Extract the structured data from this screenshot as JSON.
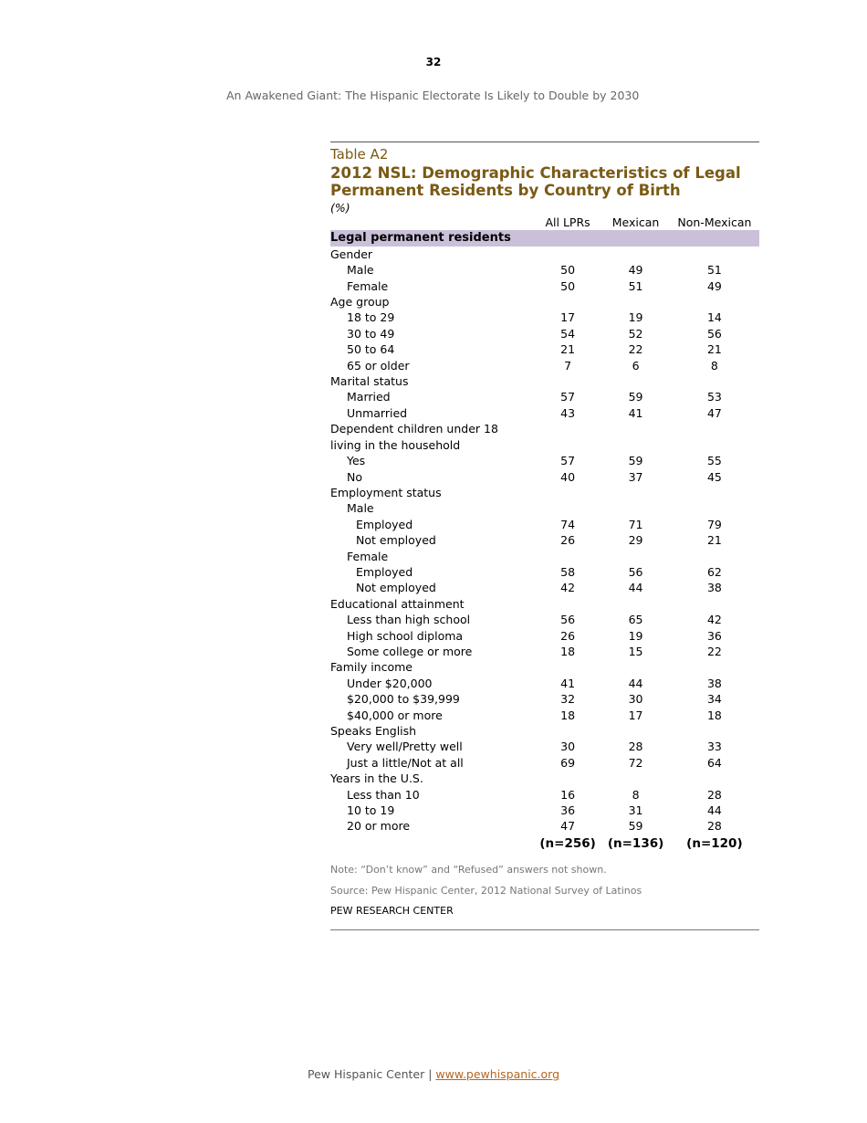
{
  "page_number": "32",
  "running_header": "An Awakened Giant: The Hispanic Electorate Is Likely to Double by 2030",
  "table": {
    "label": "Table A2",
    "title": "2012 NSL: Demographic Characteristics of Legal Permanent Residents by Country of Birth",
    "unit": "(%)",
    "columns": [
      "All LPRs",
      "Mexican",
      "Non-Mexican"
    ],
    "section": "Legal permanent residents",
    "rows": [
      {
        "label": "Gender",
        "level": 1,
        "values": [
          "",
          "",
          ""
        ]
      },
      {
        "label": "Male",
        "level": 2,
        "values": [
          "50",
          "49",
          "51"
        ]
      },
      {
        "label": "Female",
        "level": 2,
        "values": [
          "50",
          "51",
          "49"
        ]
      },
      {
        "label": "Age group",
        "level": 1,
        "values": [
          "",
          "",
          ""
        ]
      },
      {
        "label": "18 to 29",
        "level": 2,
        "values": [
          "17",
          "19",
          "14"
        ]
      },
      {
        "label": "30 to 49",
        "level": 2,
        "values": [
          "54",
          "52",
          "56"
        ]
      },
      {
        "label": "50 to 64",
        "level": 2,
        "values": [
          "21",
          "22",
          "21"
        ]
      },
      {
        "label": "65 or older",
        "level": 2,
        "values": [
          "7",
          "6",
          "8"
        ]
      },
      {
        "label": "Marital status",
        "level": 1,
        "values": [
          "",
          "",
          ""
        ]
      },
      {
        "label": "Married",
        "level": 2,
        "values": [
          "57",
          "59",
          "53"
        ]
      },
      {
        "label": "Unmarried",
        "level": 2,
        "values": [
          "43",
          "41",
          "47"
        ]
      },
      {
        "label": "Dependent children under 18",
        "level": 1,
        "values": [
          "",
          "",
          ""
        ]
      },
      {
        "label": "living in the household",
        "level": 1,
        "values": [
          "",
          "",
          ""
        ]
      },
      {
        "label": "Yes",
        "level": 2,
        "values": [
          "57",
          "59",
          "55"
        ]
      },
      {
        "label": "No",
        "level": 2,
        "values": [
          "40",
          "37",
          "45"
        ]
      },
      {
        "label": "Employment status",
        "level": 1,
        "values": [
          "",
          "",
          ""
        ]
      },
      {
        "label": "Male",
        "level": 2,
        "values": [
          "",
          "",
          ""
        ]
      },
      {
        "label": "Employed",
        "level": 3,
        "values": [
          "74",
          "71",
          "79"
        ]
      },
      {
        "label": "Not employed",
        "level": 3,
        "values": [
          "26",
          "29",
          "21"
        ]
      },
      {
        "label": "Female",
        "level": 2,
        "values": [
          "",
          "",
          ""
        ]
      },
      {
        "label": "Employed",
        "level": 3,
        "values": [
          "58",
          "56",
          "62"
        ]
      },
      {
        "label": "Not employed",
        "level": 3,
        "values": [
          "42",
          "44",
          "38"
        ]
      },
      {
        "label": "Educational attainment",
        "level": 1,
        "values": [
          "",
          "",
          ""
        ]
      },
      {
        "label": "Less than high school",
        "level": 2,
        "values": [
          "56",
          "65",
          "42"
        ]
      },
      {
        "label": "High school diploma",
        "level": 2,
        "values": [
          "26",
          "19",
          "36"
        ]
      },
      {
        "label": "Some college or more",
        "level": 2,
        "values": [
          "18",
          "15",
          "22"
        ]
      },
      {
        "label": "Family income",
        "level": 1,
        "values": [
          "",
          "",
          ""
        ]
      },
      {
        "label": "Under $20,000",
        "level": 2,
        "values": [
          "41",
          "44",
          "38"
        ]
      },
      {
        "label": "$20,000 to $39,999",
        "level": 2,
        "values": [
          "32",
          "30",
          "34"
        ]
      },
      {
        "label": "$40,000 or more",
        "level": 2,
        "values": [
          "18",
          "17",
          "18"
        ]
      },
      {
        "label": "Speaks English",
        "level": 1,
        "values": [
          "",
          "",
          ""
        ]
      },
      {
        "label": "Very well/Pretty well",
        "level": 2,
        "values": [
          "30",
          "28",
          "33"
        ]
      },
      {
        "label": "Just a little/Not at all",
        "level": 2,
        "values": [
          "69",
          "72",
          "64"
        ]
      },
      {
        "label": "Years in the U.S.",
        "level": 1,
        "values": [
          "",
          "",
          ""
        ]
      },
      {
        "label": "Less than 10",
        "level": 2,
        "values": [
          "16",
          "8",
          "28"
        ]
      },
      {
        "label": "10 to 19",
        "level": 2,
        "values": [
          "36",
          "31",
          "44"
        ]
      },
      {
        "label": "20 or more",
        "level": 2,
        "values": [
          "47",
          "59",
          "28"
        ]
      }
    ],
    "n": [
      "(n=256)",
      "(n=136)",
      "(n=120)"
    ],
    "note": "Note: “Don’t know” and “Refused” answers not shown.",
    "source": "Source: Pew Hispanic Center, 2012 National Survey of Latinos",
    "org": "PEW RESEARCH CENTER"
  },
  "footer": {
    "text": "Pew Hispanic Center | ",
    "link": "www.pewhispanic.org"
  },
  "colors": {
    "title": "#7a5a14",
    "section_band": "#cbc0d9",
    "link": "#b5651d"
  }
}
